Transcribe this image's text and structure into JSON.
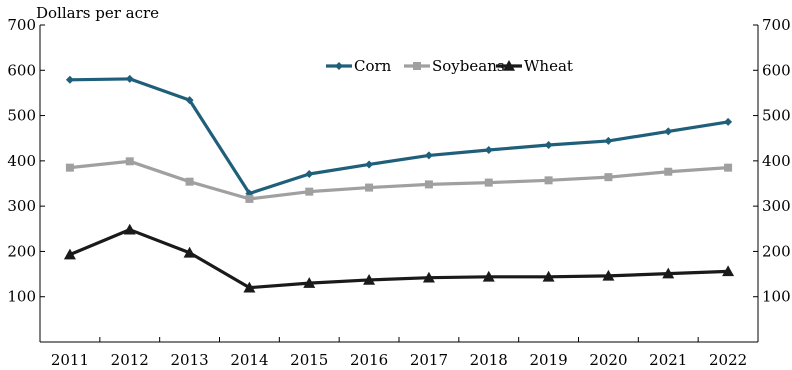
{
  "chart_data": {
    "type": "line",
    "title": "",
    "ylabel": "Dollars per acre",
    "xlabel": "",
    "categories": [
      "2011",
      "2012",
      "2013",
      "2014",
      "2015",
      "2016",
      "2017",
      "2018",
      "2019",
      "2020",
      "2021",
      "2022"
    ],
    "ylim": [
      0,
      700
    ],
    "yticks": [
      100,
      200,
      300,
      400,
      500,
      600,
      700
    ],
    "grid": false,
    "legend_placement": "top-center",
    "series": [
      {
        "name": "Corn",
        "color": "#1f5f7a",
        "marker": "diamond",
        "values": [
          579,
          581,
          534,
          328,
          371,
          392,
          412,
          424,
          435,
          444,
          465,
          486
        ]
      },
      {
        "name": "Soybeans",
        "color": "#a0a0a0",
        "marker": "square",
        "values": [
          385,
          399,
          354,
          316,
          332,
          341,
          348,
          352,
          357,
          364,
          376,
          385
        ]
      },
      {
        "name": "Wheat",
        "color": "#1a1a1a",
        "marker": "triangle",
        "values": [
          193,
          248,
          197,
          120,
          130,
          137,
          142,
          144,
          144,
          146,
          151,
          156
        ]
      }
    ]
  }
}
